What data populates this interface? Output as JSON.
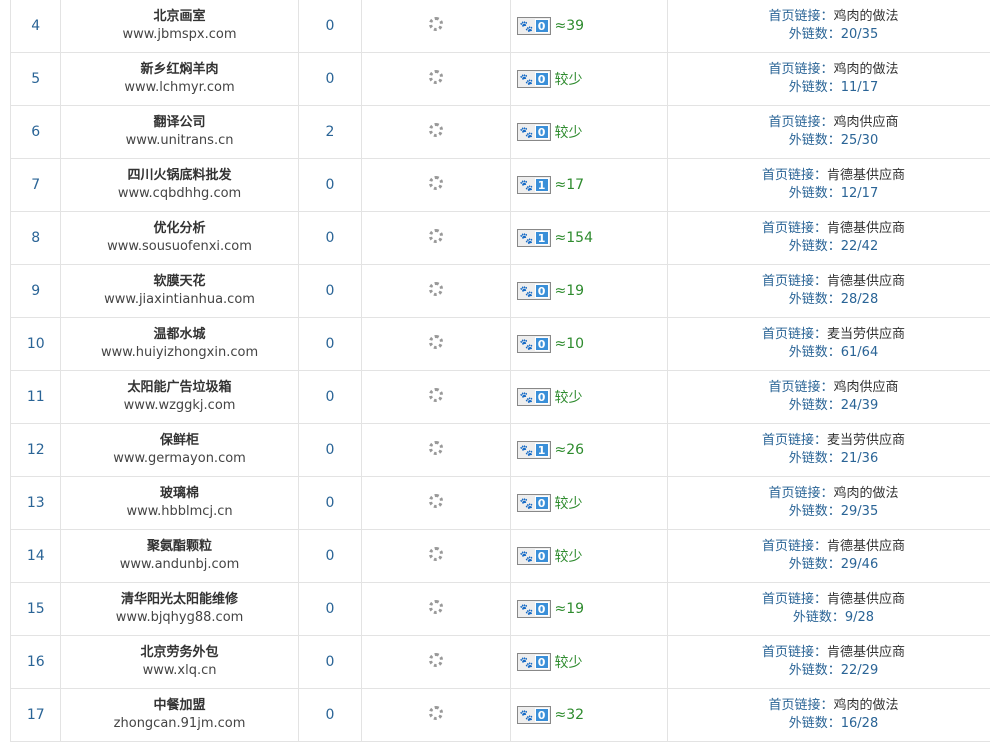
{
  "labels": {
    "home_link": "首页链接：",
    "outlinks": "外链数："
  },
  "icons": {
    "loading": "spinner-icon",
    "baidu": "baidu-paw-icon"
  },
  "rows": [
    {
      "rank": "4",
      "name": "北京画室",
      "url": "www.jbmspx.com",
      "count": "0",
      "br": "0",
      "est": "≈39",
      "keyword": "鸡肉的做法",
      "outlinks": "20/35"
    },
    {
      "rank": "5",
      "name": "新乡红焖羊肉",
      "url": "www.lchmyr.com",
      "count": "0",
      "br": "0",
      "est": "较少",
      "keyword": "鸡肉的做法",
      "outlinks": "11/17"
    },
    {
      "rank": "6",
      "name": "翻译公司",
      "url": "www.unitrans.cn",
      "count": "2",
      "br": "0",
      "est": "较少",
      "keyword": "鸡肉供应商",
      "outlinks": "25/30"
    },
    {
      "rank": "7",
      "name": "四川火锅底料批发",
      "url": "www.cqbdhhg.com",
      "count": "0",
      "br": "1",
      "est": "≈17",
      "keyword": "肯德基供应商",
      "outlinks": "12/17"
    },
    {
      "rank": "8",
      "name": "优化分析",
      "url": "www.sousuofenxi.com",
      "count": "0",
      "br": "1",
      "est": "≈154",
      "keyword": "肯德基供应商",
      "outlinks": "22/42"
    },
    {
      "rank": "9",
      "name": "软膜天花",
      "url": "www.jiaxintianhua.com",
      "count": "0",
      "br": "0",
      "est": "≈19",
      "keyword": "肯德基供应商",
      "outlinks": "28/28"
    },
    {
      "rank": "10",
      "name": "温都水城",
      "url": "www.huiyizhongxin.com",
      "count": "0",
      "br": "0",
      "est": "≈10",
      "keyword": "麦当劳供应商",
      "outlinks": "61/64"
    },
    {
      "rank": "11",
      "name": "太阳能广告垃圾箱",
      "url": "www.wzggkj.com",
      "count": "0",
      "br": "0",
      "est": "较少",
      "keyword": "鸡肉供应商",
      "outlinks": "24/39"
    },
    {
      "rank": "12",
      "name": "保鲜柜",
      "url": "www.germayon.com",
      "count": "0",
      "br": "1",
      "est": "≈26",
      "keyword": "麦当劳供应商",
      "outlinks": "21/36"
    },
    {
      "rank": "13",
      "name": "玻璃棉",
      "url": "www.hbblmcj.cn",
      "count": "0",
      "br": "0",
      "est": "较少",
      "keyword": "鸡肉的做法",
      "outlinks": "29/35"
    },
    {
      "rank": "14",
      "name": "聚氨酯颗粒",
      "url": "www.andunbj.com",
      "count": "0",
      "br": "0",
      "est": "较少",
      "keyword": "肯德基供应商",
      "outlinks": "29/46"
    },
    {
      "rank": "15",
      "name": "清华阳光太阳能维修",
      "url": "www.bjqhyg88.com",
      "count": "0",
      "br": "0",
      "est": "≈19",
      "keyword": "肯德基供应商",
      "outlinks": "9/28"
    },
    {
      "rank": "16",
      "name": "北京劳务外包",
      "url": "www.xlq.cn",
      "count": "0",
      "br": "0",
      "est": "较少",
      "keyword": "肯德基供应商",
      "outlinks": "22/29"
    },
    {
      "rank": "17",
      "name": "中餐加盟",
      "url": "zhongcan.91jm.com",
      "count": "0",
      "br": "0",
      "est": "≈32",
      "keyword": "鸡肉的做法",
      "outlinks": "16/28"
    }
  ]
}
